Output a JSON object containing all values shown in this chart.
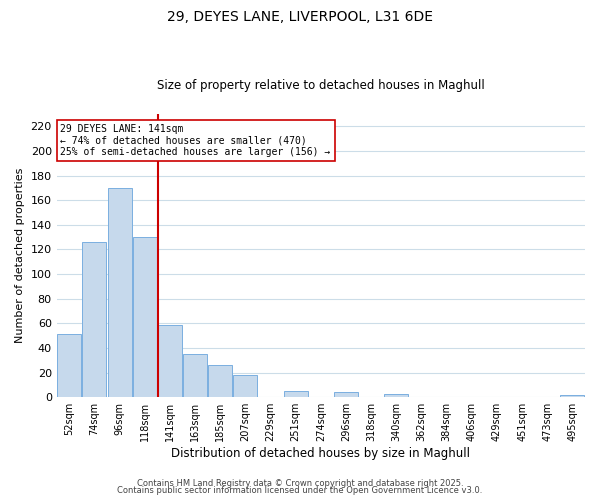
{
  "title": "29, DEYES LANE, LIVERPOOL, L31 6DE",
  "subtitle": "Size of property relative to detached houses in Maghull",
  "xlabel": "Distribution of detached houses by size in Maghull",
  "ylabel": "Number of detached properties",
  "bar_labels": [
    "52sqm",
    "74sqm",
    "96sqm",
    "118sqm",
    "141sqm",
    "163sqm",
    "185sqm",
    "207sqm",
    "229sqm",
    "251sqm",
    "274sqm",
    "296sqm",
    "318sqm",
    "340sqm",
    "362sqm",
    "384sqm",
    "406sqm",
    "429sqm",
    "451sqm",
    "473sqm",
    "495sqm"
  ],
  "bar_heights": [
    51,
    126,
    170,
    130,
    59,
    35,
    26,
    18,
    0,
    5,
    0,
    4,
    0,
    3,
    0,
    0,
    0,
    0,
    0,
    0,
    2
  ],
  "bar_color": "#c6d9ec",
  "bar_edge_color": "#7aafe0",
  "vline_color": "#cc0000",
  "annotation_title": "29 DEYES LANE: 141sqm",
  "annotation_line1": "← 74% of detached houses are smaller (470)",
  "annotation_line2": "25% of semi-detached houses are larger (156) →",
  "annotation_box_color": "#ffffff",
  "annotation_box_edge": "#cc0000",
  "ylim": [
    0,
    230
  ],
  "yticks": [
    0,
    20,
    40,
    60,
    80,
    100,
    120,
    140,
    160,
    180,
    200,
    220
  ],
  "footer1": "Contains HM Land Registry data © Crown copyright and database right 2025.",
  "footer2": "Contains public sector information licensed under the Open Government Licence v3.0.",
  "background_color": "#ffffff",
  "grid_color": "#ccdde8"
}
